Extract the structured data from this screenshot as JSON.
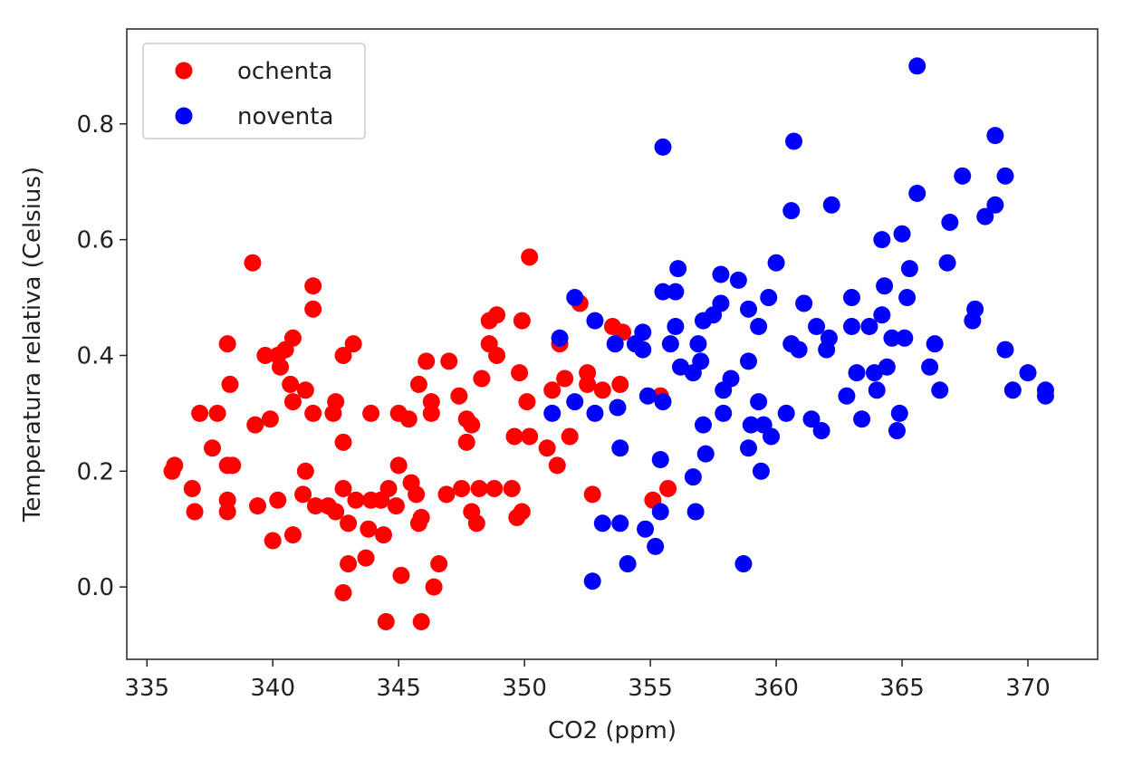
{
  "chart_data": {
    "type": "scatter",
    "xlabel": "CO2 (ppm)",
    "ylabel": "Temperatura relativa (Celsius)",
    "xlim": [
      334.2,
      372.77
    ],
    "ylim": [
      -0.125,
      0.964
    ],
    "xticks": [
      335,
      340,
      345,
      350,
      355,
      360,
      365,
      370
    ],
    "yticks": [
      {
        "value": 0,
        "label": "0.0"
      },
      0.2,
      0.4,
      0.6,
      0.8
    ],
    "grid": false,
    "legend": "upper left",
    "series": [
      {
        "name": "ochenta",
        "color": "#ff0000",
        "x": [
          336.0,
          336.1,
          336.8,
          336.9,
          337.1,
          337.8,
          337.6,
          338.2,
          338.3,
          338.2,
          338.4,
          338.2,
          338.2,
          339.2,
          339.3,
          339.4,
          339.7,
          339.9,
          340.0,
          340.2,
          340.2,
          340.3,
          340.5,
          340.8,
          340.7,
          340.8,
          340.8,
          341.3,
          341.3,
          341.2,
          341.6,
          341.6,
          341.6,
          341.7,
          342.2,
          342.4,
          342.5,
          342.5,
          342.8,
          342.8,
          343.2,
          342.8,
          342.8,
          343.0,
          343.0,
          343.3,
          343.7,
          343.9,
          343.8,
          343.9,
          344.3,
          344.4,
          344.5,
          344.6,
          344.9,
          345.0,
          345.0,
          345.1,
          345.4,
          345.5,
          345.7,
          345.8,
          345.9,
          345.8,
          345.9,
          346.1,
          346.3,
          346.3,
          346.4,
          346.6,
          346.9,
          347.0,
          347.4,
          347.5,
          347.7,
          347.7,
          347.9,
          347.9,
          348.1,
          348.2,
          348.3,
          348.6,
          348.6,
          348.8,
          348.9,
          348.9,
          349.5,
          349.7,
          349.9,
          349.6,
          349.8,
          350.1,
          349.9,
          350.2,
          350.2,
          350.9,
          351.1,
          351.3,
          351.4,
          351.6,
          351.8,
          352.2,
          352.5,
          352.5,
          352.7,
          353.1,
          353.5,
          353.8,
          353.9,
          355.1,
          355.4,
          355.7
        ],
        "values": [
          0.2,
          0.21,
          0.17,
          0.13,
          0.3,
          0.3,
          0.24,
          0.42,
          0.35,
          0.21,
          0.21,
          0.15,
          0.13,
          0.56,
          0.28,
          0.14,
          0.4,
          0.29,
          0.08,
          0.15,
          0.4,
          0.38,
          0.41,
          0.43,
          0.35,
          0.32,
          0.09,
          0.34,
          0.2,
          0.16,
          0.52,
          0.48,
          0.3,
          0.14,
          0.14,
          0.3,
          0.32,
          0.13,
          -0.01,
          0.4,
          0.42,
          0.25,
          0.17,
          0.11,
          0.04,
          0.15,
          0.05,
          0.15,
          0.1,
          0.3,
          0.15,
          0.09,
          -0.06,
          0.17,
          0.14,
          0.21,
          0.3,
          0.02,
          0.29,
          0.18,
          0.16,
          0.11,
          -0.06,
          0.35,
          0.12,
          0.39,
          0.32,
          0.3,
          0.0,
          0.04,
          0.16,
          0.39,
          0.33,
          0.17,
          0.29,
          0.25,
          0.28,
          0.13,
          0.11,
          0.17,
          0.36,
          0.46,
          0.42,
          0.17,
          0.4,
          0.47,
          0.17,
          0.12,
          0.13,
          0.26,
          0.37,
          0.32,
          0.46,
          0.57,
          0.26,
          0.24,
          0.34,
          0.21,
          0.42,
          0.36,
          0.26,
          0.49,
          0.37,
          0.35,
          0.16,
          0.34,
          0.45,
          0.35,
          0.44,
          0.15,
          0.33,
          0.17
        ]
      },
      {
        "name": "noventa",
        "color": "#0000ff",
        "x": [
          351.1,
          351.4,
          352.0,
          352.0,
          352.7,
          352.8,
          352.8,
          353.1,
          353.6,
          353.7,
          353.8,
          353.8,
          354.1,
          354.4,
          354.7,
          354.7,
          354.8,
          354.9,
          355.2,
          355.4,
          355.4,
          355.5,
          355.5,
          355.5,
          355.8,
          356.0,
          356.0,
          356.1,
          356.2,
          356.7,
          356.7,
          356.8,
          356.9,
          357.0,
          357.1,
          357.1,
          357.2,
          357.5,
          357.8,
          357.8,
          357.9,
          357.9,
          358.2,
          358.5,
          358.7,
          358.9,
          358.9,
          359.0,
          358.9,
          359.3,
          359.4,
          359.3,
          359.5,
          359.7,
          359.8,
          360.0,
          360.4,
          360.6,
          360.6,
          360.7,
          360.9,
          361.1,
          361.4,
          361.6,
          361.8,
          362.0,
          362.1,
          362.2,
          362.8,
          363.0,
          363.0,
          363.2,
          363.4,
          363.7,
          363.9,
          364.0,
          364.2,
          364.2,
          364.3,
          364.4,
          364.6,
          364.8,
          364.9,
          365.0,
          365.1,
          365.2,
          365.3,
          365.6,
          365.6,
          366.1,
          366.3,
          366.5,
          366.8,
          366.9,
          367.4,
          367.8,
          367.9,
          368.3,
          368.7,
          368.7,
          369.1,
          369.1,
          369.4,
          370.0,
          370.7,
          370.7
        ],
        "values": [
          0.3,
          0.43,
          0.5,
          0.32,
          0.01,
          0.46,
          0.3,
          0.11,
          0.42,
          0.31,
          0.24,
          0.11,
          0.04,
          0.42,
          0.44,
          0.41,
          0.1,
          0.33,
          0.07,
          0.22,
          0.13,
          0.76,
          0.32,
          0.51,
          0.42,
          0.45,
          0.51,
          0.55,
          0.38,
          0.37,
          0.19,
          0.13,
          0.42,
          0.39,
          0.28,
          0.46,
          0.23,
          0.47,
          0.49,
          0.54,
          0.3,
          0.34,
          0.36,
          0.53,
          0.04,
          0.48,
          0.39,
          0.28,
          0.24,
          0.45,
          0.2,
          0.32,
          0.28,
          0.5,
          0.26,
          0.56,
          0.3,
          0.65,
          0.42,
          0.77,
          0.41,
          0.49,
          0.29,
          0.45,
          0.27,
          0.41,
          0.43,
          0.66,
          0.33,
          0.5,
          0.45,
          0.37,
          0.29,
          0.45,
          0.37,
          0.34,
          0.6,
          0.47,
          0.52,
          0.38,
          0.43,
          0.27,
          0.3,
          0.61,
          0.43,
          0.5,
          0.55,
          0.68,
          0.9,
          0.38,
          0.42,
          0.34,
          0.56,
          0.63,
          0.71,
          0.46,
          0.48,
          0.64,
          0.66,
          0.78,
          0.71,
          0.41,
          0.34,
          0.37,
          0.33,
          0.34
        ]
      }
    ]
  }
}
